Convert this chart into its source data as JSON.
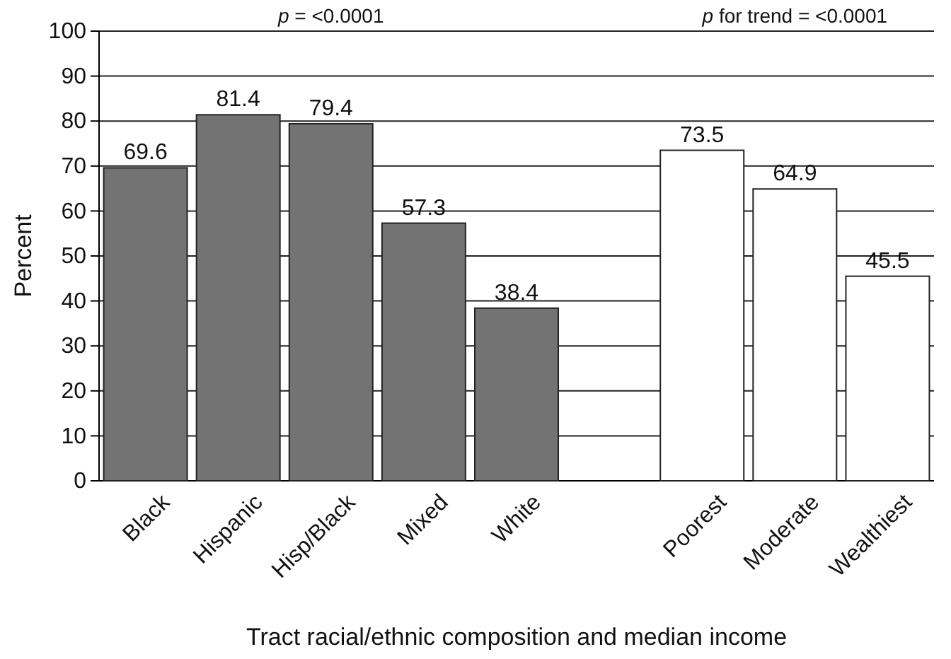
{
  "chart_data": {
    "type": "bar",
    "xlabel": "Tract racial/ethnic composition and median income",
    "ylabel": "Percent",
    "categories": [
      "Black",
      "Hispanic",
      "Hisp/Black",
      "Mixed",
      "White",
      null,
      "Poorest",
      "Moderate",
      "Wealthiest"
    ],
    "values": [
      69.6,
      81.4,
      79.4,
      57.3,
      38.4,
      null,
      73.5,
      64.9,
      45.5
    ],
    "colors": [
      "#737373",
      "#737373",
      "#737373",
      "#737373",
      "#737373",
      null,
      "#ffffff",
      "#ffffff",
      "#ffffff"
    ],
    "ylim": [
      0,
      100
    ],
    "yticks": [
      0,
      10,
      20,
      30,
      40,
      50,
      60,
      70,
      80,
      90,
      100
    ],
    "grid": "y",
    "data_labels": true,
    "annotations": [
      "p = <0.0001",
      "p for trend = <0.0001"
    ]
  }
}
